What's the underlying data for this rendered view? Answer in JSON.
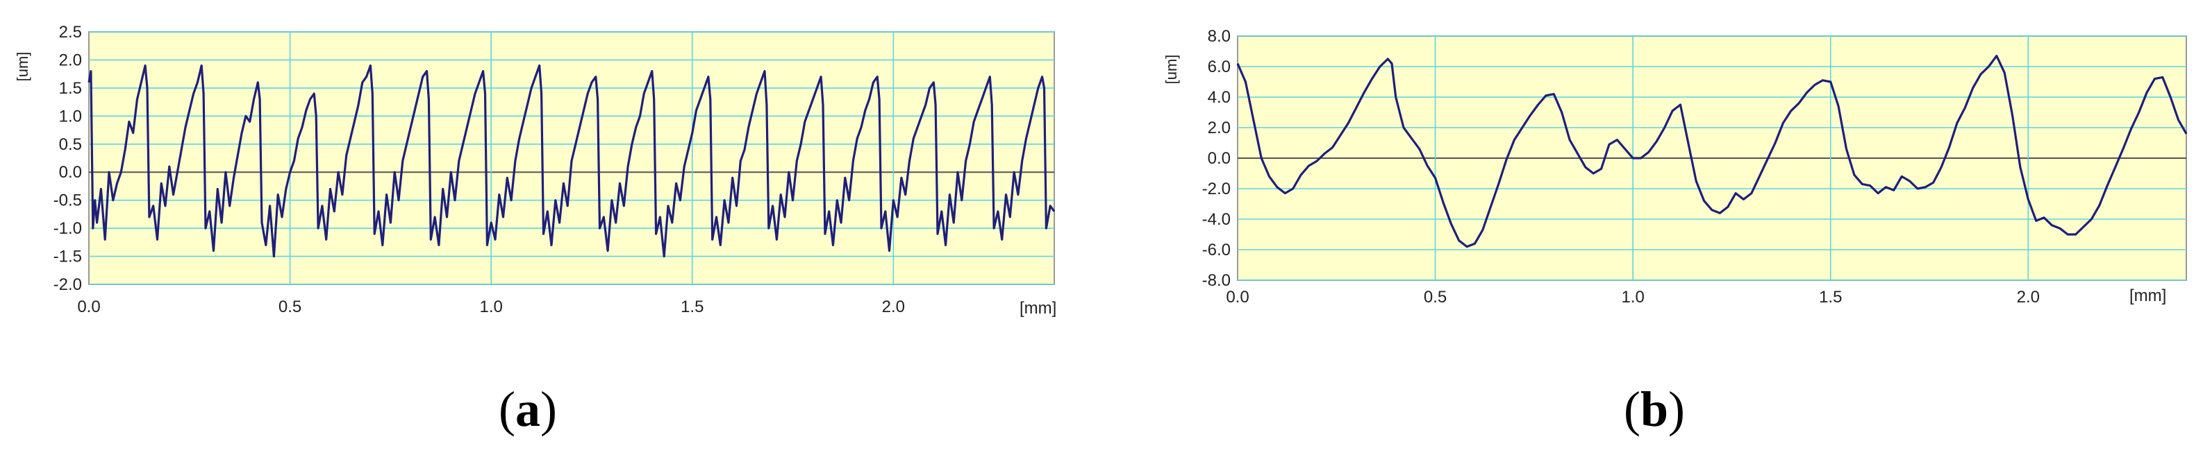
{
  "panels": [
    {
      "label": "(a)",
      "label_parts": [
        "(",
        "a",
        ")"
      ],
      "chart_data": {
        "type": "line",
        "title": "",
        "xlabel": "[mm]",
        "ylabel": "[um]",
        "xlim": [
          0.0,
          2.4
        ],
        "ylim": [
          -2.0,
          2.5
        ],
        "xticks": [
          "0.0",
          "0.5",
          "1.0",
          "1.5",
          "2.0"
        ],
        "yticks": [
          "2.5",
          "2.0",
          "1.5",
          "1.0",
          "0.5",
          "0.0",
          "-0.5",
          "-1.0",
          "-1.5",
          "-2.0"
        ],
        "grid": true,
        "series": [
          {
            "x": [
              0.0,
              0.005,
              0.01,
              0.015,
              0.02,
              0.03,
              0.04,
              0.05,
              0.06,
              0.07,
              0.08,
              0.09,
              0.1,
              0.11,
              0.12,
              0.13,
              0.14,
              0.145,
              0.15,
              0.16,
              0.17,
              0.18,
              0.19,
              0.2,
              0.21,
              0.22,
              0.23,
              0.24,
              0.25,
              0.26,
              0.27,
              0.28,
              0.285,
              0.29,
              0.3,
              0.31,
              0.32,
              0.33,
              0.34,
              0.35,
              0.36,
              0.37,
              0.38,
              0.39,
              0.4,
              0.41,
              0.42,
              0.425,
              0.43,
              0.44,
              0.45,
              0.46,
              0.47,
              0.48,
              0.49,
              0.5,
              0.51,
              0.52,
              0.53,
              0.54,
              0.55,
              0.56,
              0.565,
              0.57,
              0.58,
              0.59,
              0.6,
              0.61,
              0.62,
              0.63,
              0.64,
              0.65,
              0.66,
              0.67,
              0.68,
              0.69,
              0.7,
              0.705,
              0.71,
              0.72,
              0.73,
              0.74,
              0.75,
              0.76,
              0.77,
              0.78,
              0.79,
              0.8,
              0.81,
              0.82,
              0.83,
              0.84,
              0.845,
              0.85,
              0.86,
              0.87,
              0.88,
              0.89,
              0.9,
              0.91,
              0.92,
              0.93,
              0.94,
              0.95,
              0.96,
              0.97,
              0.98,
              0.985,
              0.99,
              1.0,
              1.01,
              1.02,
              1.03,
              1.04,
              1.05,
              1.06,
              1.07,
              1.08,
              1.09,
              1.1,
              1.11,
              1.12,
              1.125,
              1.13,
              1.14,
              1.15,
              1.16,
              1.17,
              1.18,
              1.19,
              1.2,
              1.21,
              1.22,
              1.23,
              1.24,
              1.25,
              1.26,
              1.265,
              1.27,
              1.28,
              1.29,
              1.3,
              1.31,
              1.32,
              1.33,
              1.34,
              1.35,
              1.36,
              1.37,
              1.38,
              1.39,
              1.4,
              1.405,
              1.41,
              1.42,
              1.43,
              1.44,
              1.45,
              1.46,
              1.47,
              1.48,
              1.49,
              1.5,
              1.51,
              1.52,
              1.53,
              1.54,
              1.545,
              1.55,
              1.56,
              1.57,
              1.58,
              1.59,
              1.6,
              1.61,
              1.62,
              1.63,
              1.64,
              1.65,
              1.66,
              1.67,
              1.68,
              1.685,
              1.69,
              1.7,
              1.71,
              1.72,
              1.73,
              1.74,
              1.75,
              1.76,
              1.77,
              1.78,
              1.79,
              1.8,
              1.81,
              1.82,
              1.825,
              1.83,
              1.84,
              1.85,
              1.86,
              1.87,
              1.88,
              1.89,
              1.9,
              1.91,
              1.92,
              1.93,
              1.94,
              1.95,
              1.96,
              1.965,
              1.97,
              1.98,
              1.99,
              2.0,
              2.01,
              2.02,
              2.03,
              2.04,
              2.05,
              2.06,
              2.07,
              2.08,
              2.09,
              2.1,
              2.105,
              2.11,
              2.12,
              2.13,
              2.14,
              2.15,
              2.16,
              2.17,
              2.18,
              2.19,
              2.2,
              2.21,
              2.22,
              2.23,
              2.24,
              2.245,
              2.25,
              2.26,
              2.27,
              2.28,
              2.29,
              2.3,
              2.31,
              2.32,
              2.33,
              2.34,
              2.35,
              2.36,
              2.37,
              2.375,
              2.38,
              2.39,
              2.4
            ],
            "y": [
              1.6,
              1.8,
              -1.0,
              -0.5,
              -0.9,
              -0.3,
              -1.2,
              0.0,
              -0.5,
              -0.2,
              0.0,
              0.4,
              0.9,
              0.7,
              1.3,
              1.6,
              1.9,
              1.5,
              -0.8,
              -0.6,
              -1.2,
              -0.2,
              -0.6,
              0.1,
              -0.4,
              0.0,
              0.4,
              0.8,
              1.1,
              1.4,
              1.6,
              1.9,
              1.4,
              -1.0,
              -0.7,
              -1.4,
              -0.3,
              -0.9,
              0.0,
              -0.6,
              -0.1,
              0.3,
              0.7,
              1.0,
              0.9,
              1.3,
              1.6,
              1.3,
              -0.9,
              -1.3,
              -0.6,
              -1.5,
              -0.4,
              -0.8,
              -0.3,
              0.0,
              0.2,
              0.6,
              0.8,
              1.1,
              1.3,
              1.4,
              1.0,
              -1.0,
              -0.6,
              -1.2,
              -0.3,
              -0.7,
              0.0,
              -0.4,
              0.3,
              0.6,
              0.9,
              1.2,
              1.6,
              1.7,
              1.9,
              1.4,
              -1.1,
              -0.7,
              -1.3,
              -0.4,
              -0.9,
              0.0,
              -0.5,
              0.2,
              0.5,
              0.8,
              1.1,
              1.4,
              1.7,
              1.8,
              1.3,
              -1.2,
              -0.8,
              -1.3,
              -0.3,
              -0.8,
              0.0,
              -0.5,
              0.2,
              0.5,
              0.8,
              1.1,
              1.4,
              1.6,
              1.8,
              1.4,
              -1.3,
              -0.9,
              -1.2,
              -0.4,
              -0.8,
              -0.1,
              -0.5,
              0.2,
              0.6,
              0.9,
              1.2,
              1.5,
              1.7,
              1.9,
              1.4,
              -1.1,
              -0.7,
              -1.3,
              -0.5,
              -0.9,
              -0.2,
              -0.6,
              0.2,
              0.5,
              0.8,
              1.1,
              1.4,
              1.6,
              1.7,
              1.3,
              -1.0,
              -0.8,
              -1.4,
              -0.5,
              -0.9,
              -0.2,
              -0.6,
              0.1,
              0.5,
              0.8,
              1.0,
              1.4,
              1.6,
              1.8,
              1.3,
              -1.1,
              -0.8,
              -1.5,
              -0.6,
              -0.9,
              -0.2,
              -0.5,
              0.1,
              0.4,
              0.7,
              1.1,
              1.3,
              1.5,
              1.7,
              1.3,
              -1.2,
              -0.8,
              -1.3,
              -0.5,
              -0.9,
              -0.1,
              -0.6,
              0.2,
              0.4,
              0.8,
              1.1,
              1.4,
              1.6,
              1.8,
              1.2,
              -1.0,
              -0.6,
              -1.2,
              -0.4,
              -0.8,
              0.0,
              -0.5,
              0.2,
              0.5,
              0.9,
              1.1,
              1.3,
              1.5,
              1.7,
              1.2,
              -1.1,
              -0.7,
              -1.3,
              -0.5,
              -0.9,
              -0.1,
              -0.5,
              0.2,
              0.6,
              0.8,
              1.1,
              1.3,
              1.6,
              1.7,
              1.3,
              -1.0,
              -0.7,
              -1.4,
              -0.5,
              -0.8,
              -0.1,
              -0.4,
              0.2,
              0.6,
              0.8,
              1.0,
              1.2,
              1.5,
              1.6,
              1.2,
              -1.1,
              -0.7,
              -1.3,
              -0.4,
              -0.9,
              0.0,
              -0.5,
              0.2,
              0.5,
              0.9,
              1.1,
              1.3,
              1.5,
              1.7,
              1.2,
              -1.0,
              -0.7,
              -1.2,
              -0.4,
              -0.8,
              0.0,
              -0.4,
              0.2,
              0.6,
              0.9,
              1.2,
              1.5,
              1.7,
              1.5,
              -1.0,
              -0.6,
              -0.7
            ]
          }
        ]
      }
    },
    {
      "label": "(b)",
      "label_parts": [
        "(",
        "b",
        ")"
      ],
      "chart_data": {
        "type": "line",
        "title": "",
        "xlabel": "[mm]",
        "ylabel": "[um]",
        "xlim": [
          0.0,
          2.4
        ],
        "ylim": [
          -8.0,
          8.0
        ],
        "xticks": [
          "0.0",
          "0.5",
          "1.0",
          "1.5",
          "2.0"
        ],
        "yticks": [
          "8.0",
          "6.0",
          "4.0",
          "2.0",
          "0.0",
          "-2.0",
          "-4.0",
          "-6.0",
          "-8.0"
        ],
        "grid": true,
        "series": [
          {
            "x": [
              0.0,
              0.02,
              0.04,
              0.06,
              0.08,
              0.1,
              0.12,
              0.14,
              0.16,
              0.18,
              0.2,
              0.22,
              0.24,
              0.26,
              0.28,
              0.3,
              0.32,
              0.34,
              0.36,
              0.38,
              0.39,
              0.4,
              0.42,
              0.44,
              0.46,
              0.48,
              0.5,
              0.52,
              0.54,
              0.56,
              0.58,
              0.6,
              0.62,
              0.64,
              0.66,
              0.68,
              0.7,
              0.72,
              0.74,
              0.76,
              0.78,
              0.8,
              0.82,
              0.84,
              0.86,
              0.88,
              0.9,
              0.92,
              0.94,
              0.96,
              0.98,
              1.0,
              1.02,
              1.04,
              1.06,
              1.08,
              1.1,
              1.12,
              1.14,
              1.16,
              1.18,
              1.2,
              1.22,
              1.24,
              1.26,
              1.28,
              1.3,
              1.32,
              1.34,
              1.36,
              1.38,
              1.4,
              1.42,
              1.44,
              1.46,
              1.48,
              1.5,
              1.52,
              1.54,
              1.56,
              1.58,
              1.6,
              1.62,
              1.64,
              1.66,
              1.68,
              1.7,
              1.72,
              1.74,
              1.76,
              1.78,
              1.8,
              1.82,
              1.84,
              1.86,
              1.88,
              1.9,
              1.92,
              1.94,
              1.96,
              1.98,
              2.0,
              2.02,
              2.04,
              2.06,
              2.08,
              2.1,
              2.12,
              2.14,
              2.16,
              2.18,
              2.2,
              2.22,
              2.24,
              2.26,
              2.28,
              2.3,
              2.32,
              2.34,
              2.36,
              2.38,
              2.4
            ],
            "y": [
              6.2,
              5.0,
              2.5,
              0.0,
              -1.2,
              -1.9,
              -2.3,
              -2.0,
              -1.1,
              -0.5,
              -0.2,
              0.3,
              0.7,
              1.5,
              2.3,
              3.3,
              4.3,
              5.2,
              6.0,
              6.5,
              6.2,
              4.0,
              2.0,
              1.3,
              0.6,
              -0.5,
              -1.3,
              -2.9,
              -4.3,
              -5.4,
              -5.8,
              -5.6,
              -4.7,
              -3.2,
              -1.7,
              -0.1,
              1.2,
              2.0,
              2.8,
              3.5,
              4.1,
              4.2,
              3.0,
              1.2,
              0.3,
              -0.6,
              -1.0,
              -0.7,
              0.9,
              1.2,
              0.6,
              0.0,
              0.0,
              0.4,
              1.1,
              2.0,
              3.1,
              3.5,
              1.0,
              -1.5,
              -2.8,
              -3.4,
              -3.6,
              -3.2,
              -2.3,
              -2.7,
              -2.3,
              -1.2,
              -0.1,
              1.0,
              2.3,
              3.1,
              3.6,
              4.3,
              4.8,
              5.1,
              5.0,
              3.4,
              0.6,
              -1.1,
              -1.7,
              -1.8,
              -2.3,
              -1.9,
              -2.1,
              -1.2,
              -1.5,
              -2.0,
              -1.9,
              -1.6,
              -0.6,
              0.7,
              2.3,
              3.3,
              4.6,
              5.5,
              6.0,
              6.7,
              5.6,
              2.8,
              -0.6,
              -2.7,
              -4.1,
              -3.9,
              -4.4,
              -4.6,
              -5.0,
              -5.0,
              -4.5,
              -4.0,
              -3.1,
              -1.8,
              -0.6,
              0.6,
              1.9,
              3.0,
              4.3,
              5.2,
              5.3,
              4.0,
              2.5,
              1.6
            ]
          }
        ]
      }
    }
  ],
  "colors": {
    "plot_background": "#ffffcc",
    "grid": "#5fd4e0",
    "zero_line": "#555555",
    "series": "#1f1f7a",
    "frame": "#9a9a9a"
  }
}
